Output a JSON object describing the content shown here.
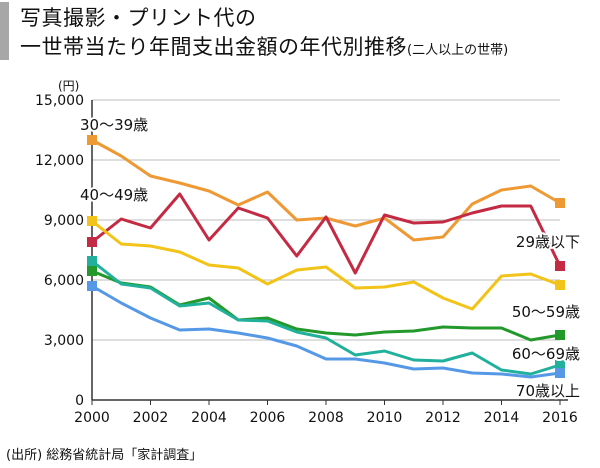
{
  "title": {
    "line1": "写真撮影・プリント代の",
    "line2": "一世帯当たり年間支出金額の年代別推移",
    "line2_sub": "(二人以上の世帯)"
  },
  "source": "(出所) 総務省統計局「家計調査」",
  "chart_data": {
    "type": "line",
    "title": "写真撮影・プリント代の一世帯当たり年間支出金額の年代別推移",
    "subtitle": "(二人以上の世帯)",
    "ylabel": "(円)",
    "xlabel": "",
    "ylim": [
      0,
      15000
    ],
    "xlim": [
      2000,
      2016
    ],
    "yticks": [
      0,
      3000,
      6000,
      9000,
      12000,
      15000
    ],
    "ytick_labels": [
      "0",
      "3,000",
      "6,000",
      "9,000",
      "12,000",
      "15,000"
    ],
    "xticks": [
      2000,
      2002,
      2004,
      2006,
      2008,
      2010,
      2012,
      2014,
      2016
    ],
    "xtick_labels": [
      "2000",
      "2002",
      "2004",
      "2006",
      "2008",
      "2010",
      "2012",
      "2014",
      "2016"
    ],
    "grid": true,
    "legend": "inline labels",
    "x": [
      2000,
      2001,
      2002,
      2003,
      2004,
      2005,
      2006,
      2007,
      2008,
      2009,
      2010,
      2011,
      2012,
      2013,
      2014,
      2015,
      2016
    ],
    "series": [
      {
        "name": "30〜39歳",
        "color": "#ee9933",
        "values": [
          13000,
          12200,
          11200,
          10850,
          10450,
          9750,
          10400,
          9000,
          9100,
          8700,
          9100,
          8000,
          8150,
          9800,
          10500,
          10700,
          9850
        ]
      },
      {
        "name": "29歳以下",
        "color": "#c42a43",
        "values": [
          7900,
          9050,
          8600,
          10300,
          8000,
          9600,
          9100,
          7200,
          9150,
          6350,
          9250,
          8850,
          8900,
          9350,
          9700,
          9700,
          6700
        ]
      },
      {
        "name": "40〜49歳",
        "color": "#f2c318",
        "values": [
          8950,
          7800,
          7700,
          7400,
          6750,
          6600,
          5800,
          6500,
          6650,
          5600,
          5650,
          5900,
          5100,
          4550,
          6200,
          6300,
          5750
        ]
      },
      {
        "name": "50〜59歳",
        "color": "#22992a",
        "values": [
          6450,
          5850,
          5650,
          4750,
          5100,
          4000,
          4100,
          3550,
          3350,
          3250,
          3400,
          3450,
          3650,
          3600,
          3600,
          3000,
          3250
        ]
      },
      {
        "name": "60〜69歳",
        "color": "#20b09c",
        "values": [
          6950,
          5800,
          5600,
          4700,
          4850,
          4000,
          3950,
          3400,
          3100,
          2250,
          2450,
          2000,
          1950,
          2350,
          1500,
          1300,
          1750
        ]
      },
      {
        "name": "70歳以上",
        "color": "#5599e6",
        "values": [
          5700,
          4850,
          4100,
          3500,
          3550,
          3350,
          3100,
          2700,
          2050,
          2050,
          1850,
          1550,
          1600,
          1350,
          1300,
          1150,
          1350
        ]
      }
    ]
  }
}
